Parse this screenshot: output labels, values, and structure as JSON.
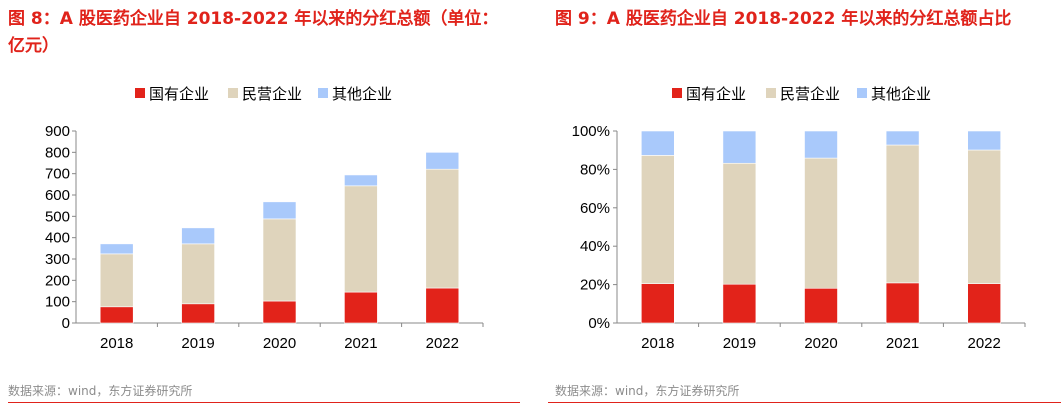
{
  "panels": [
    {
      "title": "图 8：A 股医药企业自 2018-2022 年以来的分红总额（单位：亿元）",
      "source": "数据来源：wind，东方证券研究所"
    },
    {
      "title": "图 9：A 股医药企业自 2018-2022 年以来的分红总额占比",
      "source": "数据来源：wind，东方证券研究所"
    }
  ],
  "chart_data": [
    {
      "type": "bar",
      "stacked": true,
      "title": "图 8：A 股医药企业自 2018-2022 年以来的分红总额（单位：亿元）",
      "categories": [
        "2018",
        "2019",
        "2020",
        "2021",
        "2022"
      ],
      "series": [
        {
          "name": "国有企业",
          "color": "#e2231a",
          "values": [
            76,
            90,
            103,
            145,
            164
          ]
        },
        {
          "name": "民营企业",
          "color": "#dfd4bc",
          "values": [
            248,
            281,
            385,
            498,
            557
          ]
        },
        {
          "name": "其他企业",
          "color": "#a9c9fb",
          "values": [
            47,
            75,
            80,
            51,
            79
          ]
        }
      ],
      "ylim": [
        0,
        900
      ],
      "yticks": [
        "0",
        "100",
        "200",
        "300",
        "400",
        "500",
        "600",
        "700",
        "800",
        "900"
      ],
      "legend": "top",
      "grid": false
    },
    {
      "type": "bar",
      "stacked": true,
      "title": "图 9：A 股医药企业自 2018-2022 年以来的分红总额占比",
      "categories": [
        "2018",
        "2019",
        "2020",
        "2021",
        "2022"
      ],
      "series": [
        {
          "name": "国有企业",
          "color": "#e2231a",
          "values": [
            20.5,
            20.2,
            18.1,
            20.9,
            20.5
          ]
        },
        {
          "name": "民营企业",
          "color": "#dfd4bc",
          "values": [
            66.8,
            63.0,
            67.8,
            71.8,
            69.6
          ]
        },
        {
          "name": "其他企业",
          "color": "#a9c9fb",
          "values": [
            12.7,
            16.8,
            14.1,
            7.3,
            9.9
          ]
        }
      ],
      "ylim": [
        0,
        100
      ],
      "yticks": [
        "0%",
        "20%",
        "40%",
        "60%",
        "80%",
        "100%"
      ],
      "legend": "top",
      "grid": false
    }
  ]
}
